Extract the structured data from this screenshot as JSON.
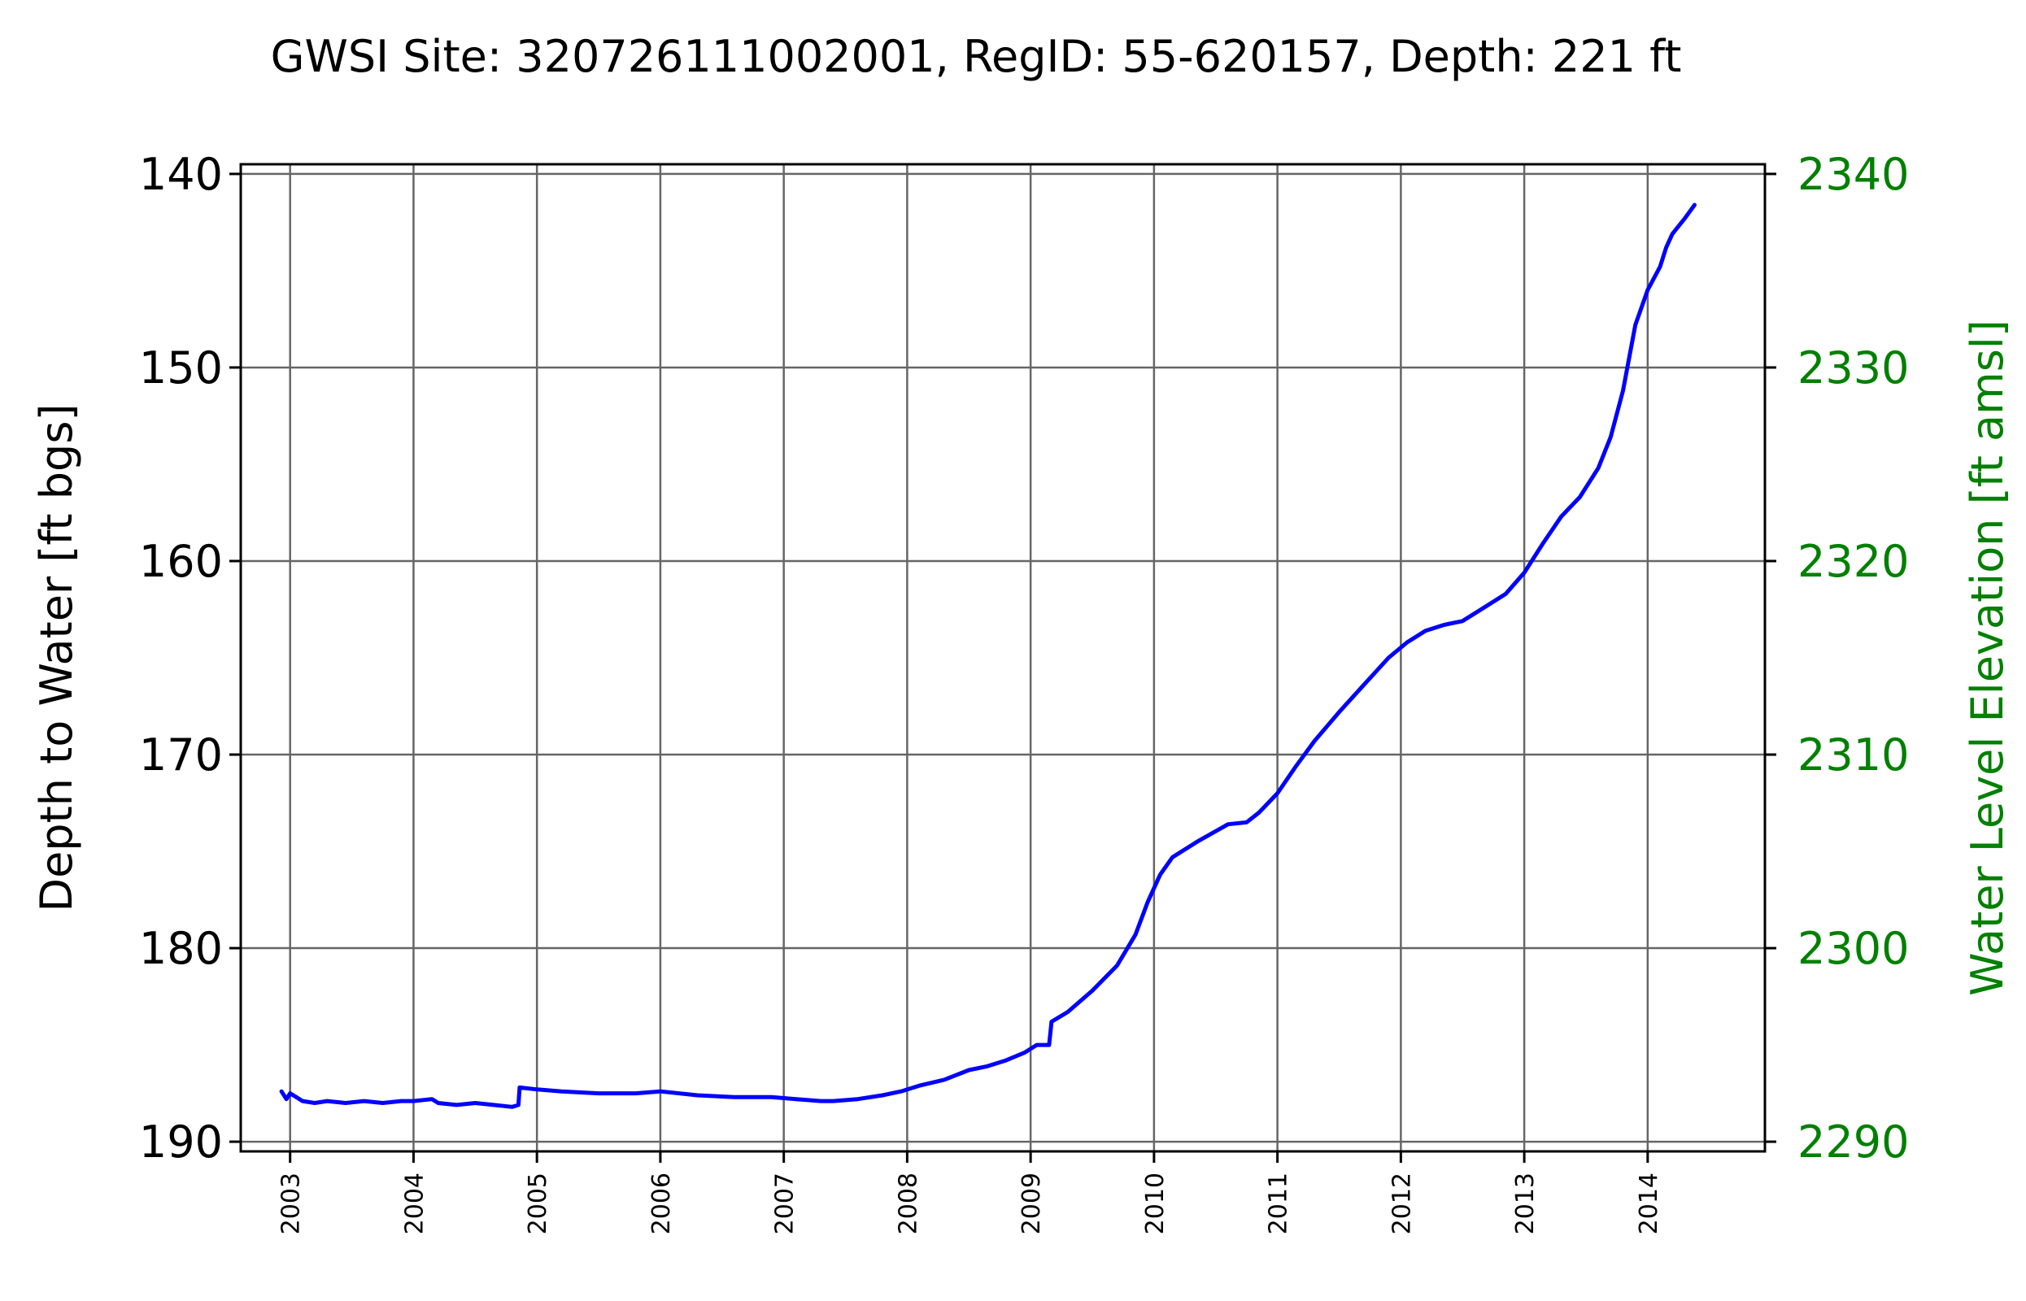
{
  "chart_data": {
    "type": "line",
    "title": "GWSI Site: 320726111002001, RegID: 55-620157, Depth: 221 ft",
    "xlabel": "",
    "ylabel": "Depth to Water [ft bgs]",
    "ylabel_right": "Water Level Elevation [ft amsl]",
    "xlim": [
      2002.6,
      2014.95
    ],
    "ylim": [
      190.5,
      139.5
    ],
    "ylim_right": [
      2289.5,
      2340.5
    ],
    "y_inverted": true,
    "grid": true,
    "x_ticks": [
      "2003",
      "2004",
      "2005",
      "2006",
      "2007",
      "2008",
      "2009",
      "2010",
      "2011",
      "2012",
      "2013",
      "2014"
    ],
    "y_ticks": [
      "140",
      "150",
      "160",
      "170",
      "180",
      "190"
    ],
    "y_ticks_right": [
      "2340",
      "2330",
      "2320",
      "2310",
      "2300",
      "2290"
    ],
    "colors": {
      "series": "#0000ff",
      "right_axis": "#008000",
      "grid": "#666666"
    },
    "series": [
      {
        "x": [
          2002.93,
          2002.97,
          2003.0,
          2003.05,
          2003.1,
          2003.2,
          2003.3,
          2003.45,
          2003.6,
          2003.75,
          2003.9,
          2004.0,
          2004.15,
          2004.2,
          2004.35,
          2004.5,
          2004.65,
          2004.8,
          2004.85,
          2004.86,
          2005.0,
          2005.2,
          2005.5,
          2005.8,
          2006.0,
          2006.3,
          2006.6,
          2006.9,
          2007.1,
          2007.3,
          2007.4,
          2007.6,
          2007.8,
          2007.95,
          2008.1,
          2008.3,
          2008.5,
          2008.65,
          2008.8,
          2008.95,
          2009.05,
          2009.15,
          2009.17,
          2009.3,
          2009.5,
          2009.7,
          2009.85,
          2009.95,
          2010.05,
          2010.15,
          2010.35,
          2010.6,
          2010.75,
          2010.85,
          2011.0,
          2011.15,
          2011.3,
          2011.5,
          2011.7,
          2011.9,
          2012.05,
          2012.2,
          2012.35,
          2012.5,
          2012.65,
          2012.85,
          2013.0,
          2013.15,
          2013.3,
          2013.45,
          2013.6,
          2013.7,
          2013.8,
          2013.9,
          2014.0,
          2014.1,
          2014.15,
          2014.2,
          2014.3,
          2014.38
        ],
        "y": [
          187.4,
          187.8,
          187.5,
          187.7,
          187.9,
          188.0,
          187.9,
          188.0,
          187.9,
          188.0,
          187.9,
          187.9,
          187.8,
          188.0,
          188.1,
          188.0,
          188.1,
          188.2,
          188.1,
          187.2,
          187.3,
          187.4,
          187.5,
          187.5,
          187.4,
          187.6,
          187.7,
          187.7,
          187.8,
          187.9,
          187.9,
          187.8,
          187.6,
          187.4,
          187.1,
          186.8,
          186.3,
          186.1,
          185.8,
          185.4,
          185.0,
          185.0,
          183.8,
          183.3,
          182.2,
          180.9,
          179.3,
          177.6,
          176.2,
          175.3,
          174.5,
          173.6,
          173.5,
          173.0,
          172.0,
          170.6,
          169.3,
          167.8,
          166.4,
          165.0,
          164.2,
          163.6,
          163.3,
          163.1,
          162.5,
          161.7,
          160.6,
          159.1,
          157.7,
          156.7,
          155.2,
          153.6,
          151.2,
          147.8,
          146.0,
          144.8,
          143.8,
          143.1,
          142.3,
          141.6
        ]
      }
    ]
  }
}
